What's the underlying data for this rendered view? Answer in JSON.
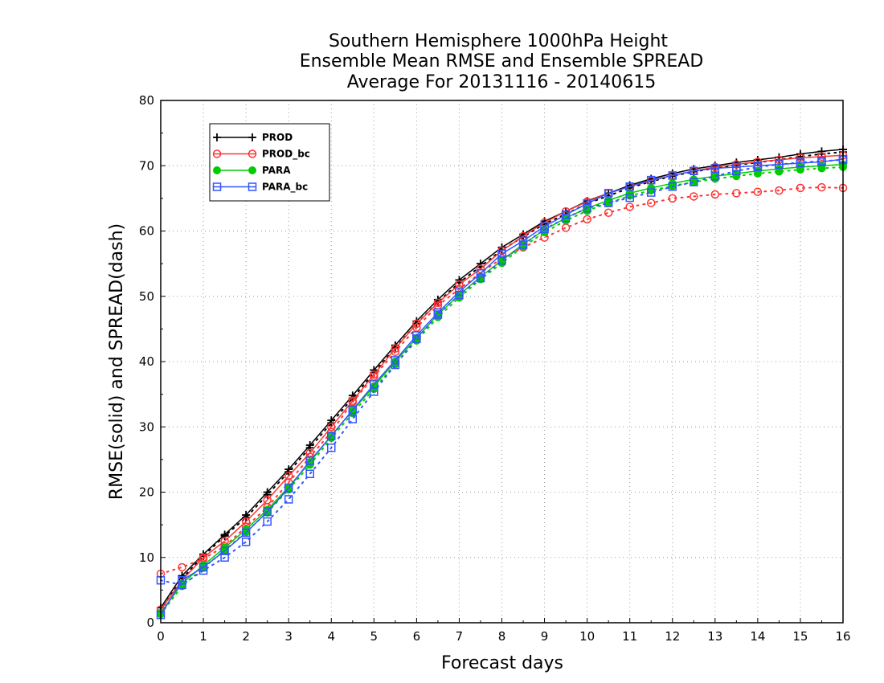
{
  "chart_data": {
    "type": "line",
    "title_lines": [
      "Southern Hemisphere 1000hPa Height",
      "Ensemble Mean RMSE and Ensemble SPREAD",
      "Average For 20131116 - 20140615"
    ],
    "xlabel": "Forecast days",
    "ylabel": "RMSE(solid) and SPREAD(dash)",
    "xlim": [
      0,
      16
    ],
    "ylim": [
      0,
      80
    ],
    "x_ticks": [
      "0",
      "1",
      "2",
      "3",
      "4",
      "5",
      "6",
      "7",
      "8",
      "9",
      "10",
      "11",
      "12",
      "13",
      "14",
      "15",
      "16"
    ],
    "y_ticks": [
      "0",
      "10",
      "20",
      "30",
      "40",
      "50",
      "60",
      "70",
      "80"
    ],
    "grid": true,
    "legend_position": "top-left",
    "x": [
      0,
      0.5,
      1,
      1.5,
      2,
      2.5,
      3,
      3.5,
      4,
      4.5,
      5,
      5.5,
      6,
      6.5,
      7,
      7.5,
      8,
      8.5,
      9,
      9.5,
      10,
      10.5,
      11,
      11.5,
      12,
      12.5,
      13,
      13.5,
      14,
      14.5,
      15,
      15.5,
      16
    ],
    "series": [
      {
        "name": "PROD",
        "color": "#000000",
        "marker": "plus",
        "rmse": [
          2.3,
          7.2,
          10.5,
          13.5,
          16.5,
          20.0,
          23.5,
          27.2,
          31.0,
          34.8,
          38.7,
          42.5,
          46.2,
          49.5,
          52.5,
          55.0,
          57.5,
          59.5,
          61.5,
          63.0,
          64.6,
          65.8,
          67.0,
          68.0,
          68.8,
          69.5,
          70.0,
          70.5,
          70.9,
          71.3,
          71.8,
          72.2,
          72.5
        ],
        "spread": [
          1.9,
          6.8,
          10.2,
          13.3,
          16.1,
          19.6,
          23.1,
          26.8,
          30.6,
          34.4,
          38.3,
          42.1,
          45.8,
          49.1,
          52.1,
          54.6,
          57.1,
          59.1,
          61.1,
          62.6,
          64.2,
          65.4,
          66.6,
          67.6,
          68.4,
          69.1,
          69.6,
          70.1,
          70.5,
          70.9,
          71.4,
          71.8,
          72.1
        ]
      },
      {
        "name": "PROD_bc",
        "color": "#ff3333",
        "marker": "circle",
        "rmse": [
          2.0,
          6.5,
          10.0,
          12.5,
          15.5,
          18.8,
          22.5,
          26.0,
          30.0,
          34.0,
          38.0,
          42.0,
          45.8,
          49.0,
          51.8,
          54.2,
          57.0,
          59.2,
          61.3,
          63.0,
          64.5,
          65.8,
          66.8,
          67.7,
          68.5,
          69.2,
          69.8,
          70.2,
          70.6,
          70.9,
          71.2,
          71.4,
          71.6
        ],
        "spread": [
          7.5,
          8.5,
          9.8,
          11.7,
          14.7,
          17.7,
          21.5,
          25.4,
          29.2,
          33.8,
          37.7,
          41.5,
          45.2,
          48.6,
          51.1,
          53.6,
          55.8,
          57.5,
          59.0,
          60.5,
          61.8,
          62.8,
          63.7,
          64.3,
          65.0,
          65.3,
          65.6,
          65.8,
          66.0,
          66.2,
          66.6,
          66.7,
          66.6
        ]
      },
      {
        "name": "PARA",
        "color": "#00cc00",
        "marker": "filled-circle",
        "rmse": [
          1.5,
          6.0,
          8.8,
          11.5,
          14.3,
          17.3,
          20.8,
          24.6,
          28.7,
          32.5,
          36.2,
          40.0,
          43.6,
          47.2,
          50.2,
          53.0,
          55.5,
          58.0,
          60.2,
          62.0,
          63.5,
          64.7,
          65.8,
          66.6,
          67.3,
          67.9,
          68.4,
          68.8,
          69.2,
          69.5,
          69.8,
          70.0,
          70.2
        ],
        "spread": [
          1.3,
          5.6,
          8.4,
          11.1,
          13.9,
          16.9,
          20.4,
          24.2,
          28.3,
          32.1,
          35.8,
          39.6,
          43.2,
          46.8,
          49.8,
          52.6,
          55.1,
          57.6,
          59.8,
          61.6,
          63.1,
          64.3,
          65.4,
          66.2,
          66.9,
          67.5,
          68.0,
          68.4,
          68.8,
          69.1,
          69.4,
          69.6,
          69.8
        ]
      },
      {
        "name": "PARA_bc",
        "color": "#3355ff",
        "marker": "square",
        "rmse": [
          1.2,
          6.5,
          8.5,
          11.0,
          13.8,
          17.0,
          20.6,
          24.8,
          28.6,
          32.6,
          36.5,
          40.2,
          44.0,
          47.5,
          50.7,
          53.5,
          56.5,
          58.5,
          60.7,
          62.5,
          64.2,
          65.8,
          66.8,
          67.8,
          68.5,
          69.2,
          69.6,
          69.8,
          70.0,
          70.2,
          70.4,
          70.6,
          71.0
        ],
        "spread": [
          6.5,
          5.8,
          8.0,
          10.0,
          12.4,
          15.5,
          18.9,
          22.8,
          26.8,
          31.2,
          35.4,
          39.5,
          43.5,
          47.2,
          50.2,
          52.8,
          55.5,
          57.9,
          60.3,
          62.0,
          63.5,
          64.3,
          65.1,
          65.9,
          66.8,
          67.5,
          68.4,
          69.2,
          69.8,
          70.2,
          70.5,
          70.7,
          70.9
        ]
      }
    ]
  }
}
